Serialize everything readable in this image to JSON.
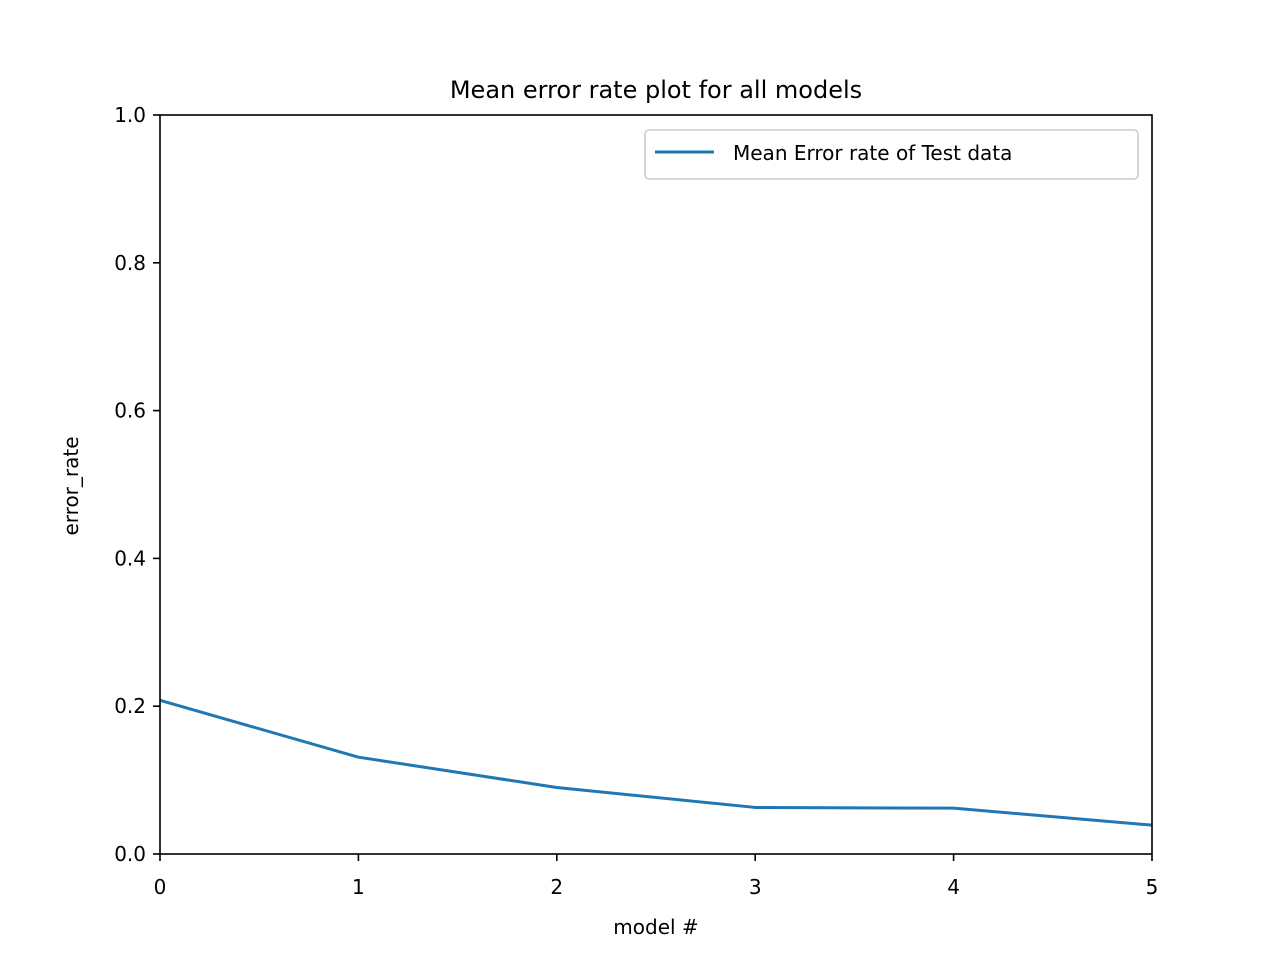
{
  "chart_data": {
    "type": "line",
    "title": "Mean error rate plot for all models",
    "xlabel": "model #",
    "ylabel": "error_rate",
    "xlim": [
      0,
      5
    ],
    "ylim": [
      0.0,
      1.0
    ],
    "x_ticks": [
      0,
      1,
      2,
      3,
      4,
      5
    ],
    "x_tick_labels": [
      "0",
      "1",
      "2",
      "3",
      "4",
      "5"
    ],
    "y_ticks": [
      0.0,
      0.2,
      0.4,
      0.6,
      0.8,
      1.0
    ],
    "y_tick_labels": [
      "0.0",
      "0.2",
      "0.4",
      "0.6",
      "0.8",
      "1.0"
    ],
    "grid": false,
    "legend_position": "top-right",
    "series": [
      {
        "name": "Mean Error rate of Test data",
        "color": "#1f77b4",
        "x": [
          0,
          1,
          2,
          3,
          4,
          5
        ],
        "values": [
          0.208,
          0.131,
          0.09,
          0.063,
          0.062,
          0.039
        ]
      }
    ]
  }
}
